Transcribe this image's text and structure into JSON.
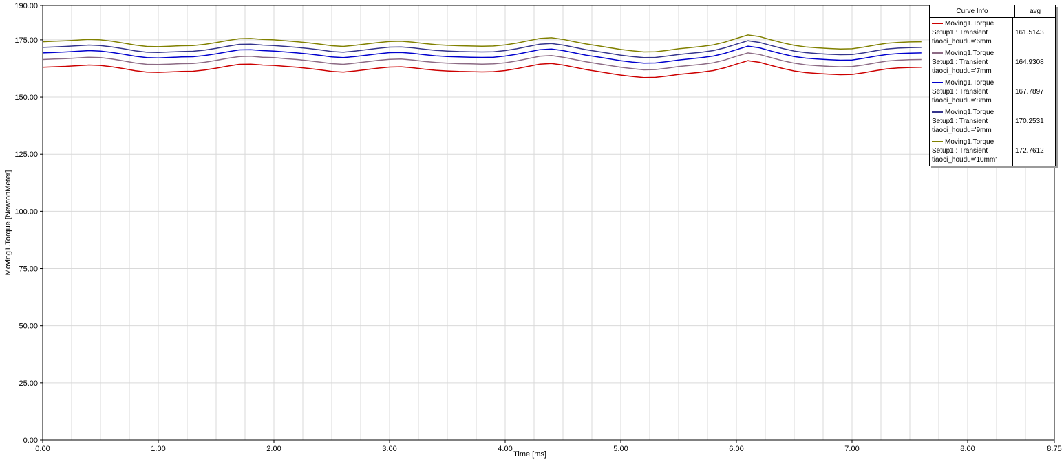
{
  "legend": {
    "header": {
      "curve": "Curve Info",
      "avg": "avg"
    }
  },
  "chart_data": {
    "type": "line",
    "title": "",
    "xlabel": "Time [ms]",
    "ylabel": "Moving1.Torque [NewtonMeter]",
    "xlim": [
      0,
      8.75
    ],
    "ylim": [
      0,
      190
    ],
    "grid": {
      "on": true,
      "color": "#d9d9d9",
      "vertical_step": 0.25
    },
    "legend_position": "top-right",
    "xticks": [
      0,
      1,
      2,
      3,
      4,
      5,
      6,
      7,
      8,
      8.75
    ],
    "xtick_labels": [
      "0.00",
      "1.00",
      "2.00",
      "3.00",
      "4.00",
      "5.00",
      "6.00",
      "7.00",
      "8.00",
      "8.75"
    ],
    "yticks": [
      0,
      25,
      50,
      75,
      100,
      125,
      150,
      175,
      190
    ],
    "ytick_labels": [
      "0.00",
      "25.00",
      "50.00",
      "75.00",
      "100.00",
      "125.00",
      "150.00",
      "175.00",
      "190.00"
    ],
    "x": [
      0.0,
      0.1,
      0.2,
      0.3,
      0.4,
      0.5,
      0.6,
      0.7,
      0.8,
      0.9,
      1.0,
      1.1,
      1.2,
      1.3,
      1.4,
      1.5,
      1.6,
      1.7,
      1.8,
      1.9,
      2.0,
      2.1,
      2.2,
      2.3,
      2.4,
      2.5,
      2.6,
      2.7,
      2.8,
      2.9,
      3.0,
      3.1,
      3.2,
      3.3,
      3.4,
      3.5,
      3.6,
      3.7,
      3.8,
      3.9,
      4.0,
      4.1,
      4.2,
      4.3,
      4.4,
      4.5,
      4.6,
      4.7,
      4.8,
      4.9,
      5.0,
      5.1,
      5.2,
      5.3,
      5.4,
      5.5,
      5.6,
      5.7,
      5.8,
      5.9,
      6.0,
      6.1,
      6.2,
      6.3,
      6.4,
      6.5,
      6.6,
      6.7,
      6.8,
      6.9,
      7.0,
      7.1,
      7.2,
      7.3,
      7.4,
      7.5,
      7.6
    ],
    "series": [
      {
        "key": "6mm",
        "name": "Moving1.Torque tiaoci_houdu='6mm'",
        "legend_lines": [
          "Moving1.Torque",
          "Setup1 : Transient",
          "tiaoci_houdu='6mm'"
        ],
        "avg": "161.5143",
        "color": "#cc0000",
        "values": [
          163.0,
          163.2,
          163.4,
          163.7,
          164.0,
          163.8,
          163.2,
          162.4,
          161.5,
          160.9,
          160.8,
          161.0,
          161.2,
          161.3,
          161.8,
          162.6,
          163.5,
          164.3,
          164.4,
          164.0,
          163.8,
          163.4,
          163.0,
          162.5,
          161.9,
          161.2,
          160.9,
          161.4,
          162.0,
          162.6,
          163.1,
          163.2,
          162.8,
          162.2,
          161.7,
          161.4,
          161.2,
          161.1,
          161.0,
          161.1,
          161.6,
          162.4,
          163.4,
          164.4,
          164.7,
          164.0,
          163.0,
          162.0,
          161.2,
          160.4,
          159.6,
          159.0,
          158.5,
          158.6,
          159.2,
          159.9,
          160.4,
          160.9,
          161.6,
          162.8,
          164.4,
          165.9,
          165.2,
          163.8,
          162.5,
          161.4,
          160.7,
          160.3,
          160.0,
          159.8,
          159.9,
          160.6,
          161.5,
          162.3,
          162.7,
          162.9,
          163.0
        ]
      },
      {
        "key": "7mm",
        "name": "Moving1.Torque tiaoci_houdu='7mm'",
        "legend_lines": [
          "Moving1.Torque",
          "Setup1 : Transient",
          "tiaoci_houdu='7mm'"
        ],
        "avg": "164.9308",
        "color": "#8c6a84",
        "values": [
          166.4,
          166.6,
          166.8,
          167.1,
          167.4,
          167.2,
          166.6,
          165.8,
          164.9,
          164.3,
          164.2,
          164.4,
          164.6,
          164.7,
          165.2,
          166.0,
          166.9,
          167.7,
          167.8,
          167.4,
          167.2,
          166.8,
          166.4,
          165.9,
          165.3,
          164.6,
          164.3,
          164.8,
          165.4,
          166.0,
          166.5,
          166.6,
          166.2,
          165.6,
          165.1,
          164.8,
          164.6,
          164.5,
          164.4,
          164.5,
          165.0,
          165.8,
          166.8,
          167.8,
          168.1,
          167.4,
          166.4,
          165.4,
          164.6,
          163.8,
          163.0,
          162.4,
          161.9,
          162.0,
          162.6,
          163.3,
          163.8,
          164.3,
          165.0,
          166.2,
          167.8,
          169.3,
          168.6,
          167.2,
          165.9,
          164.8,
          164.1,
          163.7,
          163.4,
          163.2,
          163.3,
          164.0,
          164.9,
          165.7,
          166.1,
          166.3,
          166.4
        ]
      },
      {
        "key": "8mm",
        "name": "Moving1.Torque tiaoci_houdu='8mm'",
        "legend_lines": [
          "Moving1.Torque",
          "Setup1 : Transient",
          "tiaoci_houdu='8mm'"
        ],
        "avg": "167.7897",
        "color": "#0000cd",
        "values": [
          169.3,
          169.5,
          169.7,
          170.0,
          170.3,
          170.1,
          169.5,
          168.7,
          167.8,
          167.2,
          167.1,
          167.3,
          167.5,
          167.6,
          168.1,
          168.9,
          169.8,
          170.6,
          170.7,
          170.3,
          170.1,
          169.7,
          169.3,
          168.8,
          168.2,
          167.5,
          167.2,
          167.7,
          168.3,
          168.9,
          169.4,
          169.5,
          169.1,
          168.5,
          168.0,
          167.7,
          167.5,
          167.4,
          167.3,
          167.4,
          167.9,
          168.7,
          169.7,
          170.7,
          171.0,
          170.3,
          169.3,
          168.3,
          167.5,
          166.7,
          165.9,
          165.3,
          164.8,
          164.9,
          165.5,
          166.2,
          166.7,
          167.2,
          167.9,
          169.1,
          170.7,
          172.2,
          171.5,
          170.1,
          168.8,
          167.7,
          167.0,
          166.6,
          166.3,
          166.1,
          166.2,
          166.9,
          167.8,
          168.6,
          169.0,
          169.2,
          169.3
        ]
      },
      {
        "key": "9mm",
        "name": "Moving1.Torque tiaoci_houdu='9mm'",
        "legend_lines": [
          "Moving1.Torque",
          "Setup1 : Transient",
          "tiaoci_houdu='9mm'"
        ],
        "avg": "170.2531",
        "color": "#34348c",
        "values": [
          171.7,
          171.9,
          172.1,
          172.4,
          172.7,
          172.5,
          171.9,
          171.1,
          170.2,
          169.6,
          169.5,
          169.7,
          169.9,
          170.0,
          170.5,
          171.3,
          172.2,
          173.0,
          173.1,
          172.7,
          172.5,
          172.1,
          171.7,
          171.2,
          170.6,
          169.9,
          169.6,
          170.1,
          170.7,
          171.3,
          171.8,
          171.9,
          171.5,
          170.9,
          170.4,
          170.1,
          169.9,
          169.8,
          169.7,
          169.8,
          170.3,
          171.1,
          172.1,
          173.1,
          173.4,
          172.7,
          171.7,
          170.7,
          169.9,
          169.1,
          168.3,
          167.7,
          167.2,
          167.3,
          167.9,
          168.6,
          169.1,
          169.6,
          170.3,
          171.5,
          173.1,
          174.6,
          173.9,
          172.5,
          171.2,
          170.1,
          169.4,
          169.0,
          168.7,
          168.5,
          168.6,
          169.3,
          170.2,
          171.0,
          171.4,
          171.6,
          171.7
        ]
      },
      {
        "key": "10mm",
        "name": "Moving1.Torque tiaoci_houdu='10mm'",
        "legend_lines": [
          "Moving1.Torque",
          "Setup1 : Transient",
          "tiaoci_houdu='10mm'"
        ],
        "avg": "172.7612",
        "color": "#808000",
        "values": [
          174.2,
          174.4,
          174.6,
          174.9,
          175.2,
          175.0,
          174.4,
          173.6,
          172.7,
          172.1,
          172.0,
          172.2,
          172.4,
          172.5,
          173.0,
          173.8,
          174.7,
          175.5,
          175.6,
          175.2,
          175.0,
          174.6,
          174.2,
          173.7,
          173.1,
          172.4,
          172.1,
          172.6,
          173.2,
          173.8,
          174.3,
          174.4,
          174.0,
          173.4,
          172.9,
          172.6,
          172.4,
          172.3,
          172.2,
          172.3,
          172.8,
          173.6,
          174.6,
          175.6,
          175.9,
          175.2,
          174.2,
          173.2,
          172.4,
          171.6,
          170.8,
          170.2,
          169.7,
          169.8,
          170.4,
          171.1,
          171.6,
          172.1,
          172.8,
          174.0,
          175.6,
          177.1,
          176.4,
          175.0,
          173.7,
          172.6,
          171.9,
          171.5,
          171.2,
          171.0,
          171.1,
          171.8,
          172.7,
          173.5,
          173.9,
          174.1,
          174.2
        ]
      }
    ]
  }
}
